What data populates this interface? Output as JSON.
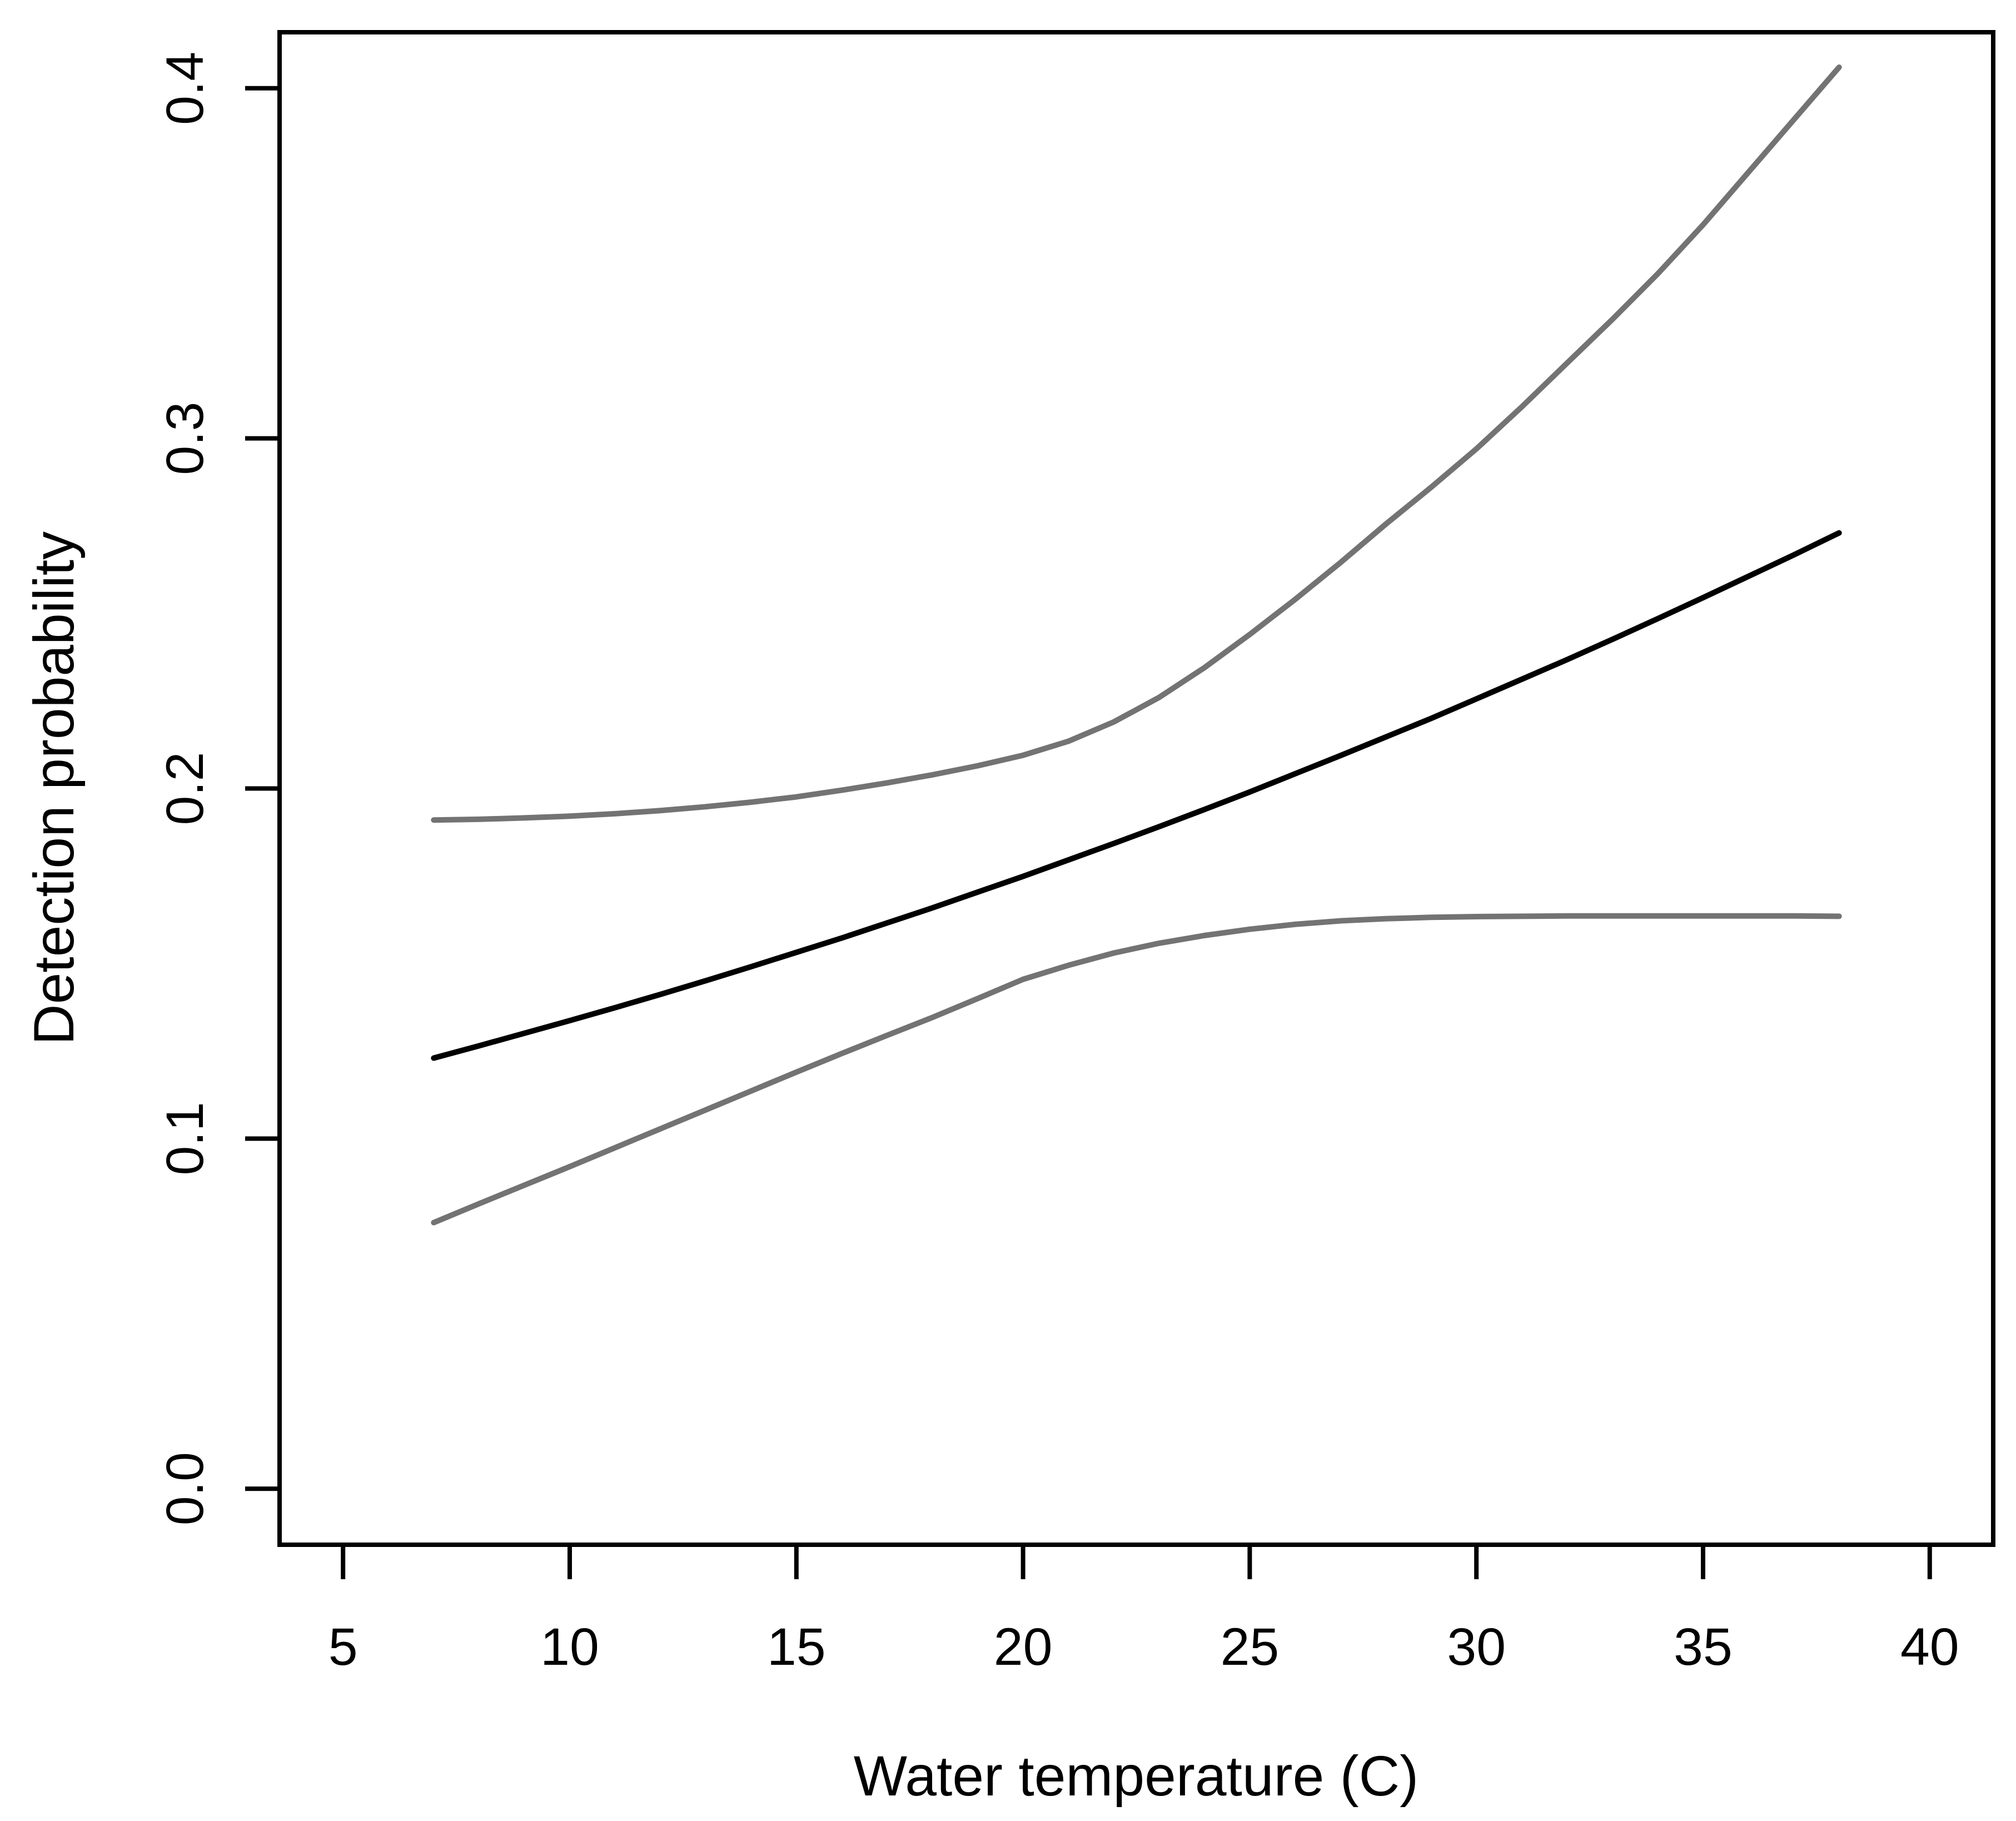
{
  "chart_data": {
    "type": "line",
    "title": "",
    "xlabel": "Water temperature (C)",
    "ylabel": "Detection probability",
    "xlim": [
      5,
      40
    ],
    "ylim": [
      0.0,
      0.4
    ],
    "axis_padding_fraction": 0.04,
    "grid": "off",
    "legend": "none",
    "background_color": "#ffffff",
    "box_color": "#000000",
    "x_ticks": [
      {
        "value": 5,
        "label": "5"
      },
      {
        "value": 10,
        "label": "10"
      },
      {
        "value": 15,
        "label": "15"
      },
      {
        "value": 20,
        "label": "20"
      },
      {
        "value": 25,
        "label": "25"
      },
      {
        "value": 30,
        "label": "30"
      },
      {
        "value": 35,
        "label": "35"
      },
      {
        "value": 40,
        "label": "40"
      }
    ],
    "y_ticks": [
      {
        "value": 0.0,
        "label": "0.0"
      },
      {
        "value": 0.1,
        "label": "0.1"
      },
      {
        "value": 0.2,
        "label": "0.2"
      },
      {
        "value": 0.3,
        "label": "0.3"
      },
      {
        "value": 0.4,
        "label": "0.4"
      }
    ],
    "x": [
      7,
      8,
      9,
      10,
      11,
      12,
      13,
      14,
      15,
      16,
      17,
      18,
      19,
      20,
      21,
      22,
      23,
      24,
      25,
      26,
      27,
      28,
      29,
      30,
      31,
      32,
      33,
      34,
      35,
      36,
      37,
      38
    ],
    "series": [
      {
        "name": "mean-detection-probability",
        "color": "#000000",
        "y": [
          0.123,
          0.1265,
          0.1301,
          0.1337,
          0.1374,
          0.1412,
          0.1451,
          0.1491,
          0.1532,
          0.1573,
          0.1616,
          0.1659,
          0.1704,
          0.1749,
          0.1796,
          0.1843,
          0.1891,
          0.194,
          0.199,
          0.2042,
          0.2094,
          0.2147,
          0.22,
          0.2256,
          0.2312,
          0.2368,
          0.2426,
          0.2485,
          0.2545,
          0.2606,
          0.2667,
          0.273
        ]
      },
      {
        "name": "upper-confidence-limit",
        "color": "#737373",
        "y": [
          0.191,
          0.1912,
          0.1916,
          0.1921,
          0.1928,
          0.1937,
          0.1948,
          0.1961,
          0.1976,
          0.1995,
          0.2016,
          0.2039,
          0.2065,
          0.2095,
          0.2135,
          0.219,
          0.226,
          0.2345,
          0.244,
          0.254,
          0.2645,
          0.2755,
          0.286,
          0.297,
          0.309,
          0.3215,
          0.334,
          0.347,
          0.361,
          0.376,
          0.391,
          0.406
        ]
      },
      {
        "name": "lower-confidence-limit",
        "color": "#737373",
        "y": [
          0.076,
          0.0814,
          0.0867,
          0.092,
          0.0974,
          0.1028,
          0.1082,
          0.1136,
          0.119,
          0.1243,
          0.1295,
          0.1346,
          0.14,
          0.1455,
          0.1495,
          0.153,
          0.1558,
          0.158,
          0.1598,
          0.1612,
          0.1622,
          0.1628,
          0.1632,
          0.1634,
          0.1635,
          0.1636,
          0.1636,
          0.1636,
          0.1636,
          0.1636,
          0.1636,
          0.1635
        ]
      }
    ]
  }
}
